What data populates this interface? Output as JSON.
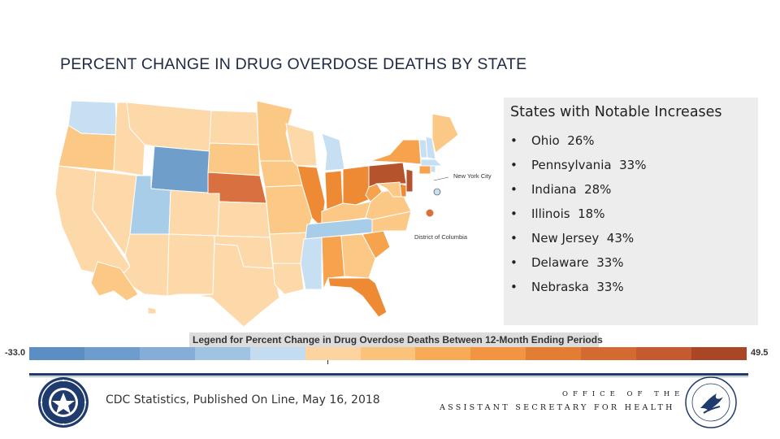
{
  "slide": {
    "title": "PERCENT CHANGE IN DRUG OVERDOSE DEATHS BY STATE"
  },
  "map": {
    "labels": {
      "new_york_city": "New York City",
      "dc": "District of Columbia"
    },
    "colors": {
      "dark_blue": "#6f9ecb",
      "light_blue": "#c6dff2",
      "mid_blue": "#a8cde8",
      "pale_orange": "#fdd8a8",
      "light_orange": "#fbc886",
      "orange": "#f7a24d",
      "dark_orange": "#ee8a33",
      "red_orange": "#d8703f",
      "dark_red": "#b5532c"
    }
  },
  "notable": {
    "title": "States with Notable Increases",
    "bullet": "•",
    "items": [
      {
        "state": "Ohio",
        "value": "26%"
      },
      {
        "state": "Pennsylvania",
        "value": "33%"
      },
      {
        "state": "Indiana",
        "value": "28%"
      },
      {
        "state": "Illinois",
        "value": "18%"
      },
      {
        "state": "New Jersey",
        "value": "43%"
      },
      {
        "state": "Delaware",
        "value": "33%"
      },
      {
        "state": "Nebraska",
        "value": "33%"
      }
    ]
  },
  "legend": {
    "title": "Legend for Percent Change in Drug Overdose Deaths Between 12-Month Ending Periods",
    "min": "-33.0",
    "max": "49.5",
    "colors": [
      "#5b8fc4",
      "#6e9ccd",
      "#86add6",
      "#a1c3e3",
      "#c3dcf0",
      "#fdd3a0",
      "#fbc27c",
      "#f8aa56",
      "#f39540",
      "#e47c33",
      "#d46a30",
      "#c45a2e",
      "#aa4626"
    ]
  },
  "footer": {
    "source": "CDC Statistics, Published On Line, May 16, 2018",
    "office": "OFFICE OF THE",
    "ash": "ASSISTANT SECRETARY FOR HEALTH"
  }
}
